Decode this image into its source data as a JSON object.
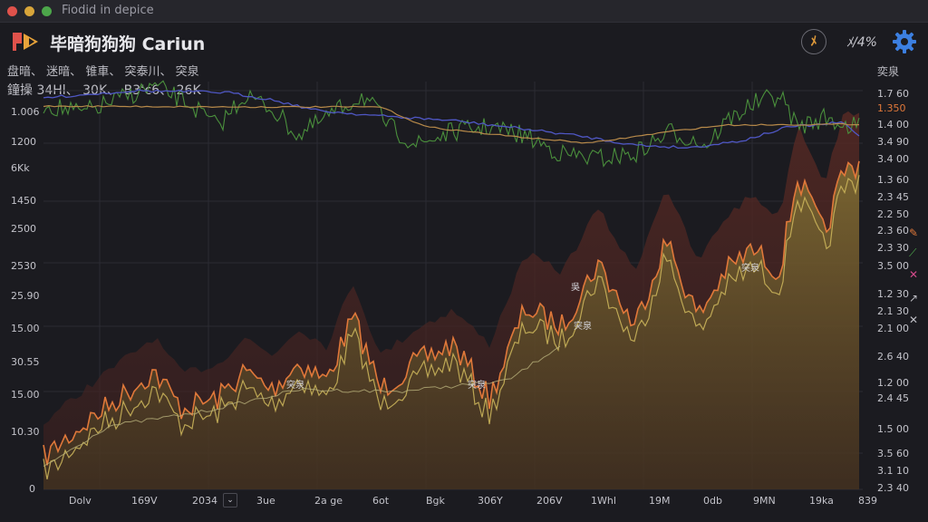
{
  "window": {
    "title": "Fiodid in depice"
  },
  "header": {
    "app_title": "毕暗狗狗狗 Cariun",
    "speed_label": "ﾒ",
    "percent": "ﾒ/4%",
    "right_label": "奕泉"
  },
  "stats": {
    "row1": [
      "盘暗",
      "迷暗",
      "锥車",
      "突泰川",
      "突泉"
    ],
    "row2": [
      "鐘操",
      "34Hl",
      "30K",
      "B3ʻc6",
      "26K"
    ]
  },
  "left_axis": [
    "1.006",
    "1200",
    "6Kk",
    "1450",
    "2500",
    "2530",
    "25.90",
    "15.00",
    "30.55",
    "15.00",
    "10.30",
    "0"
  ],
  "right_axis": [
    "1.7 60",
    "1.350",
    "1.4 00",
    "3.4 90",
    "3.4 00",
    "1.3 60",
    "2.3 45",
    "2.2 50",
    "2.3 60",
    "2.3 30",
    "3.5 00",
    "1.2 30",
    "2.1 30",
    "2.1 00",
    "2.6 40",
    "1.2 00",
    "2.4 45",
    "1.5 00",
    "3.5 60",
    "3.1 10",
    "2.3 40"
  ],
  "x_axis": [
    "Dolv",
    "169V",
    "2034",
    "3ue",
    "2a ge",
    "6ot",
    "Bgk",
    "306Y",
    "206V",
    "1Whl",
    "19M",
    "0db",
    "9MN",
    "19ka",
    "839"
  ],
  "annotations": [
    "突泉",
    "突泉",
    "突泉",
    "吳",
    "突泉"
  ],
  "colors": {
    "bg": "#1b1b20",
    "green_series": "#4a8f3c",
    "blue_series": "#4f57c4",
    "tan_series": "#b88a4a",
    "orange_series": "#e0783a",
    "yellow_series": "#c9b25a",
    "area_fill": "#7a6a2e",
    "area_dark": "#4a2a22"
  },
  "icons": [
    "logo-icon",
    "speed-icon",
    "gear-icon",
    "dropdown-chevron-icon",
    "ruler-icon",
    "line-tool-icon",
    "crosshair-icon"
  ]
}
